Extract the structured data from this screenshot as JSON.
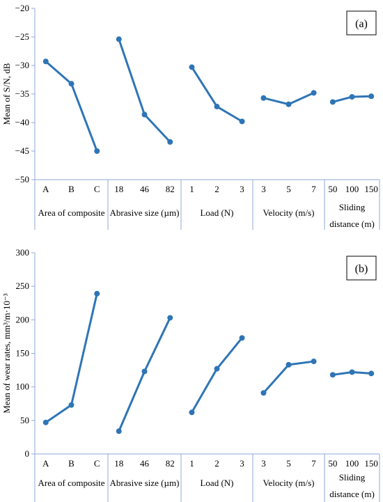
{
  "chart_data": [
    {
      "type": "line",
      "panel_label": "(a)",
      "ylabel": "Mean of S/N, dB",
      "ylim": [
        -50,
        -20
      ],
      "yticks": [
        "−20",
        "−25",
        "−30",
        "−35",
        "−40",
        "−45",
        "−50"
      ],
      "ytick_values": [
        -20,
        -25,
        -30,
        -35,
        -40,
        -45,
        -50
      ],
      "line_color": "#2E75B6",
      "groups": [
        {
          "name": "Area of composite",
          "categories": [
            "A",
            "B",
            "C"
          ],
          "values": [
            -29.3,
            -33.2,
            -45.0
          ]
        },
        {
          "name": "Abrasive size (µm)",
          "categories": [
            "18",
            "46",
            "82"
          ],
          "values": [
            -25.4,
            -38.6,
            -43.4
          ]
        },
        {
          "name": "Load (N)",
          "categories": [
            "1",
            "2",
            "3"
          ],
          "values": [
            -30.3,
            -37.2,
            -39.8
          ]
        },
        {
          "name": "Velocity (m/s)",
          "categories": [
            "3",
            "5",
            "7"
          ],
          "values": [
            -35.7,
            -36.8,
            -34.8
          ]
        },
        {
          "name": [
            "Sliding",
            "distance (m)"
          ],
          "categories": [
            "50",
            "100",
            "150"
          ],
          "values": [
            -36.4,
            -35.5,
            -35.4
          ]
        }
      ]
    },
    {
      "type": "line",
      "panel_label": "(b)",
      "ylabel": "Mean of wear rates, mm³/m·10⁻³",
      "ylim": [
        0,
        300
      ],
      "yticks": [
        "300",
        "250",
        "200",
        "150",
        "100",
        "50",
        "0"
      ],
      "ytick_values": [
        300,
        250,
        200,
        150,
        100,
        50,
        0
      ],
      "line_color": "#2E75B6",
      "groups": [
        {
          "name": "Area of composite",
          "categories": [
            "A",
            "B",
            "C"
          ],
          "values": [
            47,
            73,
            239
          ]
        },
        {
          "name": "Abrasive size (µm)",
          "categories": [
            "18",
            "46",
            "82"
          ],
          "values": [
            34,
            123,
            203
          ]
        },
        {
          "name": "Load (N)",
          "categories": [
            "1",
            "2",
            "3"
          ],
          "values": [
            62,
            127,
            173
          ]
        },
        {
          "name": "Velocity (m/s)",
          "categories": [
            "3",
            "5",
            "7"
          ],
          "values": [
            91,
            133,
            138
          ]
        },
        {
          "name": [
            "Sliding",
            "distance (m)"
          ],
          "categories": [
            "50",
            "100",
            "150"
          ],
          "values": [
            118,
            122,
            120
          ]
        }
      ]
    }
  ]
}
